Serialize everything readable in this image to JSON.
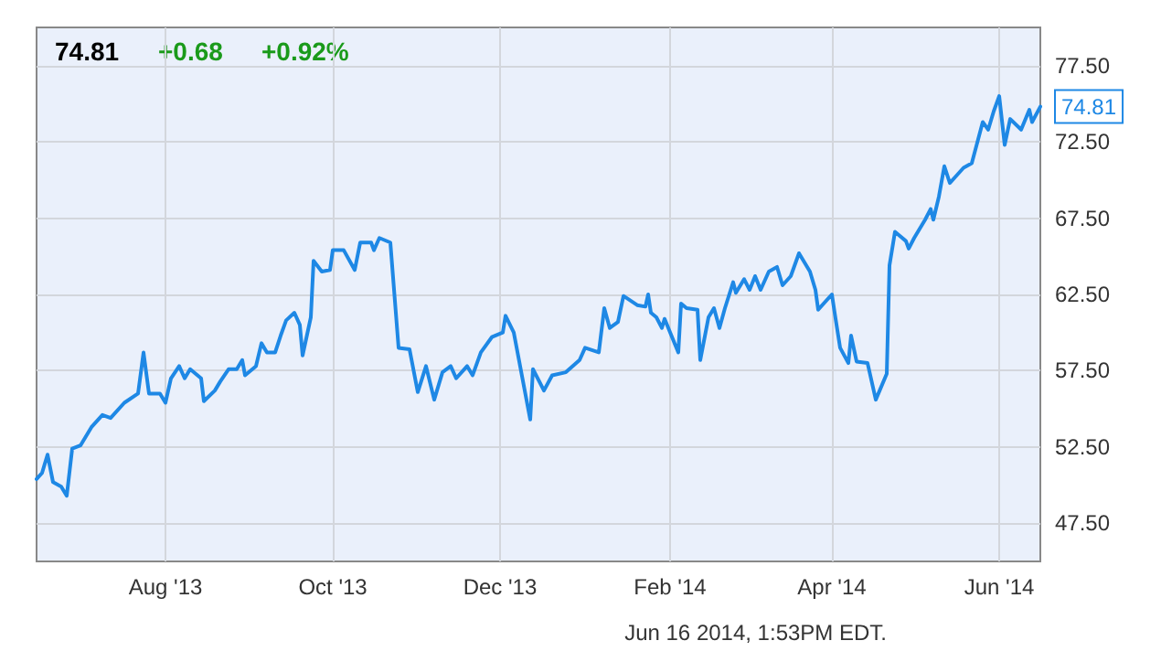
{
  "chart_data": {
    "type": "line",
    "annotations": [
      "74.81",
      "+0.68",
      "+0.92%",
      "Jun 16 2014, 1:53PM EDT.",
      {
        "text": "74.81",
        "x": "2014-06-16",
        "y": 74.81
      }
    ],
    "x": [
      "2013-06-15",
      "2013-06-17",
      "2013-06-19",
      "2013-06-21",
      "2013-06-24",
      "2013-06-26",
      "2013-06-28",
      "2013-07-01",
      "2013-07-05",
      "2013-07-09",
      "2013-07-12",
      "2013-07-17",
      "2013-07-22",
      "2013-07-24",
      "2013-07-26",
      "2013-07-30",
      "2013-08-01",
      "2013-08-03",
      "2013-08-06",
      "2013-08-08",
      "2013-08-10",
      "2013-08-14",
      "2013-08-15",
      "2013-08-19",
      "2013-08-21",
      "2013-08-24",
      "2013-08-27",
      "2013-08-29",
      "2013-08-30",
      "2013-09-03",
      "2013-09-05",
      "2013-09-07",
      "2013-09-10",
      "2013-09-12",
      "2013-09-14",
      "2013-09-17",
      "2013-09-19",
      "2013-09-20",
      "2013-09-23",
      "2013-09-24",
      "2013-09-27",
      "2013-09-30",
      "2013-10-01",
      "2013-10-05",
      "2013-10-09",
      "2013-10-11",
      "2013-10-15",
      "2013-10-16",
      "2013-10-18",
      "2013-10-22",
      "2013-10-25",
      "2013-10-29",
      "2013-11-01",
      "2013-11-04",
      "2013-11-07",
      "2013-11-10",
      "2013-11-13",
      "2013-11-15",
      "2013-11-19",
      "2013-11-21",
      "2013-11-24",
      "2013-11-28",
      "2013-12-02",
      "2013-12-03",
      "2013-12-06",
      "2013-12-12",
      "2013-12-13",
      "2013-12-17",
      "2013-12-20",
      "2013-12-25",
      "2013-12-30",
      "2014-01-01",
      "2014-01-06",
      "2014-01-08",
      "2014-01-10",
      "2014-01-13",
      "2014-01-15",
      "2014-01-20",
      "2014-01-23",
      "2014-01-24",
      "2014-01-25",
      "2014-01-27",
      "2014-01-29",
      "2014-01-30",
      "2014-02-04",
      "2014-02-05",
      "2014-02-07",
      "2014-02-11",
      "2014-02-12",
      "2014-02-15",
      "2014-02-17",
      "2014-02-19",
      "2014-02-21",
      "2014-02-24",
      "2014-02-25",
      "2014-02-28",
      "2014-03-02",
      "2014-03-04",
      "2014-03-06",
      "2014-03-09",
      "2014-03-12",
      "2014-03-14",
      "2014-03-17",
      "2014-03-20",
      "2014-03-24",
      "2014-03-26",
      "2014-03-27",
      "2014-04-01",
      "2014-04-02",
      "2014-04-04",
      "2014-04-07",
      "2014-04-08",
      "2014-04-10",
      "2014-04-14",
      "2014-04-17",
      "2014-04-21",
      "2014-04-22",
      "2014-04-24",
      "2014-04-28",
      "2014-04-29",
      "2014-05-01",
      "2014-05-05",
      "2014-05-07",
      "2014-05-08",
      "2014-05-10",
      "2014-05-12",
      "2014-05-14",
      "2014-05-16",
      "2014-05-19",
      "2014-05-22",
      "2014-05-26",
      "2014-05-28",
      "2014-05-30",
      "2014-06-01",
      "2014-06-03",
      "2014-06-05",
      "2014-06-09",
      "2014-06-12",
      "2014-06-13",
      "2014-06-16"
    ],
    "series": [
      {
        "color": "#1e88e5",
        "values": [
          50.4,
          50.8,
          52.0,
          50.2,
          49.9,
          49.3,
          52.4,
          52.6,
          53.8,
          54.6,
          54.4,
          55.4,
          56.0,
          58.7,
          56.0,
          56.0,
          55.4,
          57.0,
          57.8,
          57.0,
          57.6,
          57.0,
          55.5,
          56.2,
          56.8,
          57.6,
          57.6,
          58.2,
          57.2,
          57.8,
          59.3,
          58.7,
          58.7,
          59.8,
          60.8,
          61.3,
          60.5,
          58.5,
          61.0,
          64.7,
          64.0,
          64.1,
          65.4,
          65.4,
          64.1,
          65.9,
          65.9,
          65.4,
          66.2,
          65.9,
          59.0,
          58.9,
          56.1,
          57.8,
          55.6,
          57.4,
          57.8,
          57.0,
          57.8,
          57.2,
          58.7,
          59.7,
          60.0,
          61.1,
          60.0,
          54.3,
          57.6,
          56.2,
          57.2,
          57.4,
          58.2,
          59.0,
          58.7,
          61.6,
          60.3,
          60.7,
          62.4,
          61.8,
          61.7,
          62.5,
          61.3,
          61.0,
          60.3,
          60.9,
          58.7,
          61.9,
          61.6,
          61.5,
          58.2,
          61.0,
          61.6,
          60.3,
          61.6,
          63.3,
          62.6,
          63.5,
          62.8,
          63.7,
          62.8,
          64.0,
          64.3,
          63.1,
          63.7,
          65.2,
          64.0,
          62.8,
          61.5,
          62.5,
          61.3,
          59.0,
          58.0,
          59.8,
          58.1,
          58.0,
          55.6,
          57.3,
          64.4,
          66.6,
          66.0,
          65.5,
          66.2,
          67.4,
          68.1,
          67.4,
          68.9,
          70.9,
          69.8,
          70.2,
          70.8,
          71.1,
          73.8,
          73.3,
          74.5,
          75.5,
          72.3,
          74.0,
          73.3,
          74.6,
          73.8,
          74.81
        ]
      }
    ],
    "xlim": [
      "2013-06-15",
      "2014-06-16"
    ],
    "xticks": [
      {
        "value": "2013-08-01",
        "label": "Aug '13"
      },
      {
        "value": "2013-10-01",
        "label": "Oct '13"
      },
      {
        "value": "2013-12-01",
        "label": "Dec '13"
      },
      {
        "value": "2014-02-01",
        "label": "Feb '14"
      },
      {
        "value": "2014-04-01",
        "label": "Apr '14"
      },
      {
        "value": "2014-06-01",
        "label": "Jun '14"
      }
    ],
    "ylim": [
      45,
      80
    ],
    "yticks": [
      {
        "value": 47.5,
        "label": "47.50"
      },
      {
        "value": 52.5,
        "label": "52.50"
      },
      {
        "value": 57.5,
        "label": "57.50"
      },
      {
        "value": 62.5,
        "label": "62.50"
      },
      {
        "value": 67.5,
        "label": "67.50"
      },
      {
        "value": 72.5,
        "label": "72.50"
      },
      {
        "value": 77.5,
        "label": "77.50"
      }
    ],
    "grid": true,
    "marker": "none",
    "line_style": "solid"
  }
}
